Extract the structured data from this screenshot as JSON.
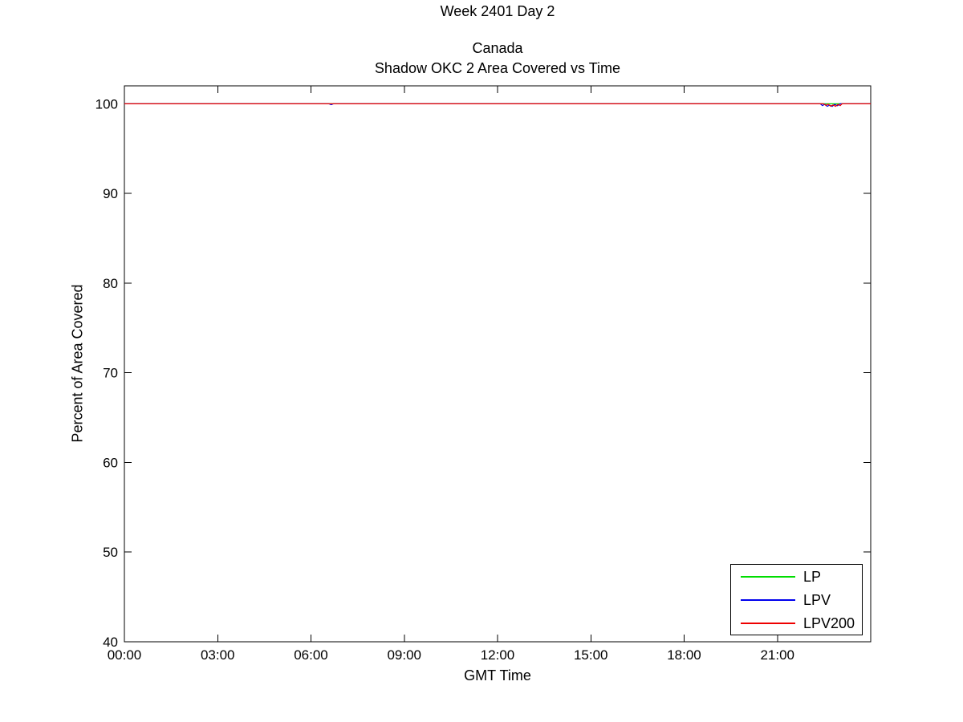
{
  "figure": {
    "suptitle": "Week 2401 Day 2",
    "title_line1": "Canada",
    "title_line2": "Shadow OKC 2 Area Covered vs Time"
  },
  "axes": {
    "xlabel": "GMT Time",
    "ylabel": "Percent of Area Covered"
  },
  "legend": {
    "entries": [
      {
        "label": "LP",
        "color": "#00dd00"
      },
      {
        "label": "LPV",
        "color": "#0000ee"
      },
      {
        "label": "LPV200",
        "color": "#ee0000"
      }
    ]
  },
  "chart_data": {
    "type": "line",
    "suptitle": "Week 2401 Day 2",
    "title": "Canada / Shadow OKC 2 Area Covered vs Time",
    "xlabel": "GMT Time",
    "ylabel": "Percent of Area Covered",
    "xlim_hours": [
      0,
      24
    ],
    "ylim": [
      40,
      102
    ],
    "grid": false,
    "legend_position": "bottom-right",
    "x_tick_hours": [
      0,
      3,
      6,
      9,
      12,
      15,
      18,
      21
    ],
    "x_tick_labels": [
      "00:00",
      "03:00",
      "06:00",
      "09:00",
      "12:00",
      "15:00",
      "18:00",
      "21:00"
    ],
    "y_tick_values": [
      40,
      50,
      60,
      70,
      80,
      90,
      100
    ],
    "y_tick_labels": [
      "40",
      "50",
      "60",
      "70",
      "80",
      "90",
      "100"
    ],
    "series": [
      {
        "name": "LP",
        "color": "#00dd00",
        "points": [
          [
            0,
            100
          ],
          [
            24,
            100
          ]
        ]
      },
      {
        "name": "LPV",
        "color": "#0000ee",
        "points": [
          [
            0,
            100
          ],
          [
            6.58,
            100
          ],
          [
            6.65,
            99.9
          ],
          [
            6.72,
            100
          ],
          [
            22.38,
            100
          ],
          [
            22.45,
            99.8
          ],
          [
            22.52,
            99.95
          ],
          [
            22.6,
            99.72
          ],
          [
            22.68,
            99.85
          ],
          [
            22.76,
            99.7
          ],
          [
            22.84,
            99.93
          ],
          [
            22.93,
            99.78
          ],
          [
            23.02,
            100
          ],
          [
            24,
            100
          ]
        ]
      },
      {
        "name": "LPV200",
        "color": "#ee0000",
        "points": [
          [
            0,
            100
          ],
          [
            22.48,
            100
          ],
          [
            22.56,
            99.82
          ],
          [
            22.63,
            99.97
          ],
          [
            22.71,
            99.73
          ],
          [
            22.79,
            99.87
          ],
          [
            22.87,
            99.72
          ],
          [
            22.95,
            99.93
          ],
          [
            23.02,
            99.8
          ],
          [
            23.08,
            100
          ],
          [
            24,
            100
          ]
        ]
      }
    ]
  }
}
